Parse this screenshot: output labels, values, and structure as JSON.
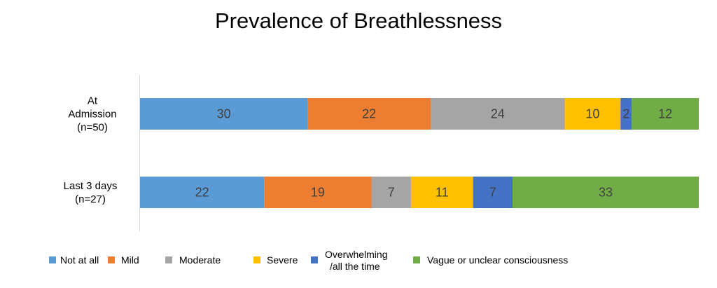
{
  "chart_data": {
    "type": "bar",
    "orientation": "horizontal",
    "stacked": true,
    "title": "Prevalence of Breathlessness",
    "categories": [
      {
        "lines": [
          "At",
          "Admission",
          "(n=50)"
        ]
      },
      {
        "lines": [
          "Last 3 days",
          "(n=27)"
        ]
      }
    ],
    "series": [
      {
        "name": "Not at all",
        "legend_lines": [
          "Not at all"
        ],
        "color": "#5B9BD5",
        "values": [
          30,
          22
        ]
      },
      {
        "name": "Mild",
        "legend_lines": [
          "Mild"
        ],
        "color": "#ED7D31",
        "values": [
          22,
          19
        ]
      },
      {
        "name": "Moderate",
        "legend_lines": [
          "Moderate"
        ],
        "color": "#A5A5A5",
        "values": [
          24,
          7
        ]
      },
      {
        "name": "Severe",
        "legend_lines": [
          "Severe"
        ],
        "color": "#FFC000",
        "values": [
          10,
          11
        ]
      },
      {
        "name": "Overwhelming /all the time",
        "legend_lines": [
          "Overwhelming",
          "/all the time"
        ],
        "color": "#4472C4",
        "values": [
          2,
          7
        ]
      },
      {
        "name": "Vague or unclear consciousness",
        "legend_lines": [
          "Vague or unclear consciousness"
        ],
        "color": "#70AD47",
        "values": [
          12,
          33
        ]
      }
    ],
    "xlim": [
      0,
      100
    ],
    "legend_position": "bottom",
    "grid": false
  }
}
